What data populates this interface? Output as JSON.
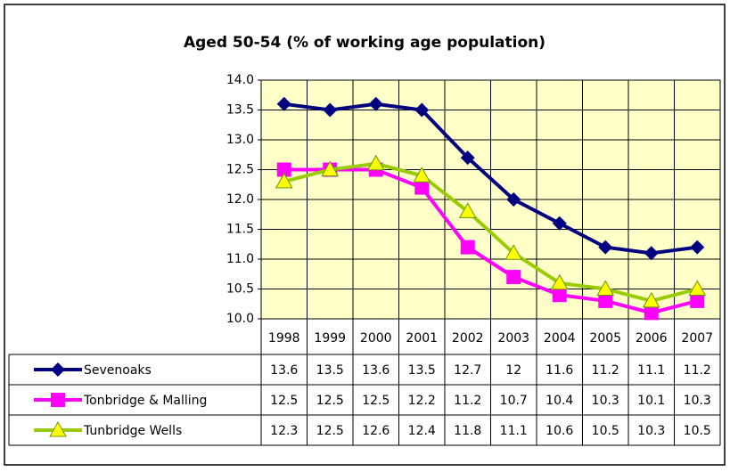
{
  "chart_data": {
    "type": "line",
    "title": "Aged 50-54 (% of working age population)",
    "categories": [
      "1998",
      "1999",
      "2000",
      "2001",
      "2002",
      "2003",
      "2004",
      "2005",
      "2006",
      "2007"
    ],
    "series": [
      {
        "name": "Sevenoaks",
        "color": "#000080",
        "marker": "diamond",
        "values": [
          13.6,
          13.5,
          13.6,
          13.5,
          12.7,
          12.0,
          11.6,
          11.2,
          11.1,
          11.2
        ]
      },
      {
        "name": "Tonbridge & Malling",
        "color": "#ff00ff",
        "marker": "square",
        "values": [
          12.5,
          12.5,
          12.5,
          12.2,
          11.2,
          10.7,
          10.4,
          10.3,
          10.1,
          10.3
        ]
      },
      {
        "name": "Tunbridge Wells",
        "color": "#99cc00",
        "marker": "triangle",
        "values": [
          12.3,
          12.5,
          12.6,
          12.4,
          11.8,
          11.1,
          10.6,
          10.5,
          10.3,
          10.5
        ]
      }
    ],
    "ylim": [
      10,
      14
    ],
    "yticks": [
      {
        "value": 10,
        "label": "10.0"
      },
      {
        "value": 10.5,
        "label": "10.5"
      },
      {
        "value": 11,
        "label": "11.0"
      },
      {
        "value": 11.5,
        "label": "11.5"
      },
      {
        "value": 12,
        "label": "12.0"
      },
      {
        "value": 12.5,
        "label": "12.5"
      },
      {
        "value": 13,
        "label": "13.0"
      },
      {
        "value": 13.5,
        "label": "13.5"
      },
      {
        "value": 14,
        "label": "14.0"
      }
    ],
    "grid": true,
    "background": "#ffffc8"
  }
}
